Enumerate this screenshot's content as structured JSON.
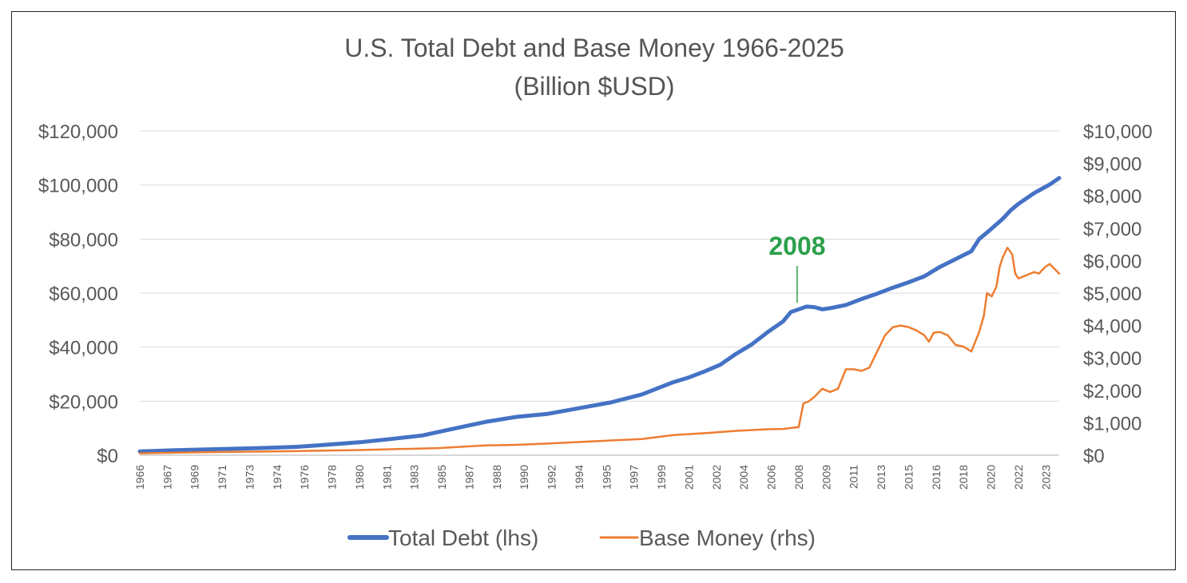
{
  "chart_data": {
    "type": "line",
    "title": "U.S. Total Debt and Base Money 1966-2025",
    "subtitle": "(Billion $USD)",
    "xlabel": "",
    "ylabel": "",
    "x_range": [
      1966,
      2024.6
    ],
    "x_tick_labels": [
      "1966",
      "1967",
      "1969",
      "1971",
      "1973",
      "1974",
      "1976",
      "1978",
      "1980",
      "1981",
      "1983",
      "1985",
      "1987",
      "1988",
      "1990",
      "1992",
      "1994",
      "1995",
      "1997",
      "1999",
      "2001",
      "2002",
      "2004",
      "2006",
      "2008",
      "2009",
      "2011",
      "2013",
      "2015",
      "2016",
      "2018",
      "2020",
      "2022",
      "2023"
    ],
    "x_tick_positions": [
      1966,
      1967.75,
      1969.5,
      1971.25,
      1973,
      1974.75,
      1976.5,
      1978.25,
      1980,
      1981.75,
      1983.5,
      1985.25,
      1987,
      1988.75,
      1990.5,
      1992.25,
      1994,
      1995.75,
      1997.5,
      1999.25,
      2001,
      2002.75,
      2004.5,
      2006.25,
      2008,
      2009.75,
      2011.5,
      2013.25,
      2015,
      2016.75,
      2018.5,
      2020.25,
      2022,
      2023.75
    ],
    "y_left": {
      "ylim": [
        0,
        120000
      ],
      "tick_values": [
        0,
        20000,
        40000,
        60000,
        80000,
        100000,
        120000
      ],
      "tick_labels": [
        "$0",
        "$20,000",
        "$40,000",
        "$60,000",
        "$80,000",
        "$100,000",
        "$120,000"
      ]
    },
    "y_right": {
      "ylim": [
        0,
        10000
      ],
      "tick_values": [
        0,
        1000,
        2000,
        3000,
        4000,
        5000,
        6000,
        7000,
        8000,
        9000,
        10000
      ],
      "tick_labels": [
        "$0",
        "$1,000",
        "$2,000",
        "$3,000",
        "$4,000",
        "$5,000",
        "$6,000",
        "$7,000",
        "$8,000",
        "$9,000",
        "$10,000"
      ]
    },
    "grid": true,
    "legend_position": "bottom",
    "series": [
      {
        "name": "Total Debt (lhs)",
        "axis": "left",
        "color": "#4472c4",
        "x": [
          1966,
          1967,
          1968,
          1970,
          1972,
          1974,
          1976,
          1978,
          1980,
          1982,
          1984,
          1986,
          1988,
          1990,
          1992,
          1994,
          1996,
          1998,
          2000,
          2001,
          2002,
          2003,
          2004,
          2005,
          2006,
          2007,
          2007.5,
          2008,
          2008.5,
          2009,
          2009.5,
          2010,
          2011,
          2012,
          2013,
          2014,
          2015,
          2016,
          2017,
          2018,
          2019,
          2019.5,
          2020,
          2021,
          2021.5,
          2022,
          2023,
          2024,
          2024.6
        ],
        "values": [
          1400,
          1600,
          1800,
          2100,
          2400,
          2700,
          3100,
          3900,
          4800,
          6000,
          7300,
          9800,
          12300,
          14200,
          15300,
          17400,
          19500,
          22500,
          27000,
          28800,
          31000,
          33500,
          37500,
          41000,
          45500,
          49500,
          53000,
          54000,
          55000,
          54800,
          54000,
          54400,
          55600,
          57800,
          59800,
          62000,
          64000,
          66200,
          69700,
          72600,
          75500,
          80000,
          82400,
          87500,
          90600,
          93000,
          97000,
          100200,
          102600
        ]
      },
      {
        "name": "Base Money (rhs)",
        "axis": "right",
        "color": "#ed7d31",
        "x": [
          1966,
          1970,
          1975,
          1980,
          1985,
          1988,
          1990,
          1992,
          1995,
          1998,
          2000,
          2002,
          2004,
          2006,
          2007,
          2008,
          2008.3,
          2008.6,
          2009,
          2009.5,
          2010,
          2010.5,
          2011,
          2011.5,
          2012,
          2012.5,
          2013,
          2013.5,
          2014,
          2014.5,
          2015,
          2015.5,
          2016,
          2016.3,
          2016.6,
          2017,
          2017.5,
          2018,
          2018.5,
          2019,
          2019.5,
          2019.8,
          2020,
          2020.3,
          2020.6,
          2020.8,
          2021,
          2021.3,
          2021.6,
          2021.8,
          2022,
          2022.5,
          2023,
          2023.3,
          2023.7,
          2024,
          2024.3,
          2024.6
        ],
        "values": [
          60,
          90,
          120,
          160,
          220,
          300,
          320,
          360,
          430,
          500,
          620,
          680,
          750,
          800,
          810,
          870,
          1600,
          1650,
          1800,
          2050,
          1950,
          2050,
          2650,
          2650,
          2600,
          2700,
          3200,
          3700,
          3950,
          4000,
          3950,
          3850,
          3700,
          3500,
          3780,
          3800,
          3700,
          3400,
          3350,
          3200,
          3800,
          4300,
          5000,
          4900,
          5200,
          5800,
          6100,
          6400,
          6200,
          5600,
          5450,
          5550,
          5650,
          5600,
          5800,
          5900,
          5750,
          5600
        ]
      }
    ],
    "annotations": [
      {
        "text": "2008",
        "x": 2008
      }
    ]
  }
}
